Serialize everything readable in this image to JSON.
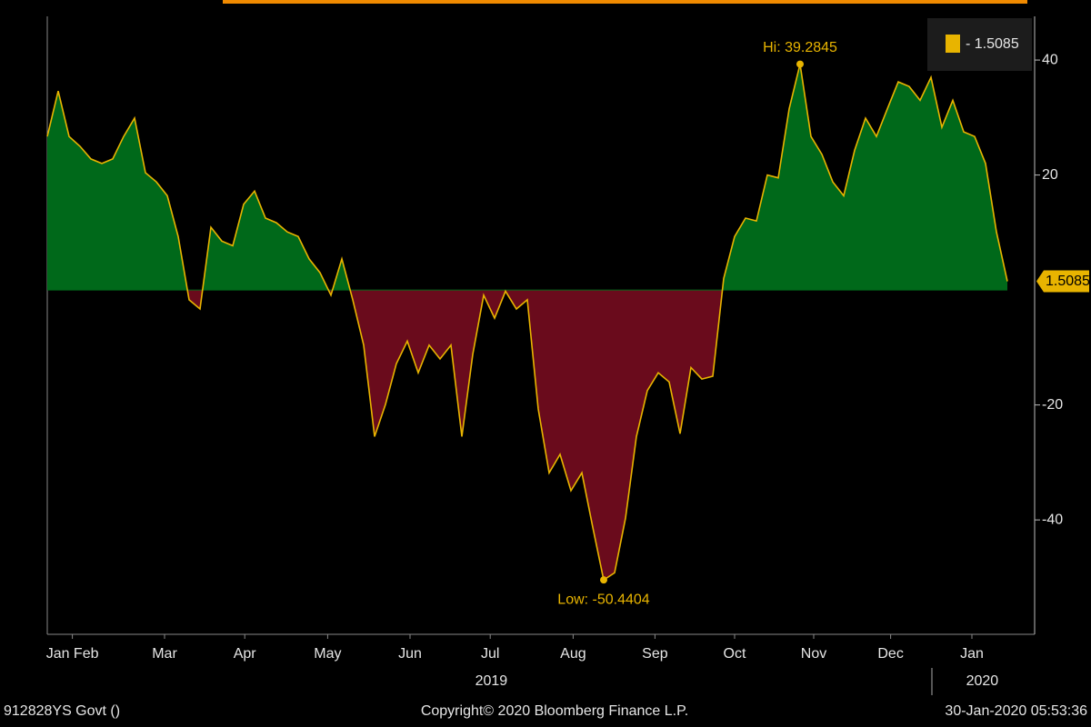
{
  "chart_data": {
    "type": "area",
    "footer": {
      "left": "912828YS Govt ()",
      "center": "Copyright© 2020 Bloomberg Finance L.P.",
      "right": "30-Jan-2020 05:53:36"
    },
    "annotations": {
      "high": "Hi: 39.2845",
      "low": "Low: -50.4404",
      "last": "1.5085"
    },
    "series": [
      {
        "name": "- 1.5085",
        "color": "#e8b400",
        "positive_color": "#00691a",
        "negative_color": "#6a0b1c",
        "values": [
          26.7,
          34.6,
          26.7,
          25,
          22.8,
          22,
          22.8,
          26.7,
          29.9,
          20.4,
          18.8,
          16.4,
          9.3,
          -1.7,
          -3.3,
          10.9,
          8.5,
          7.7,
          14.9,
          17.2,
          12.5,
          11.7,
          10.1,
          9.3,
          5.4,
          3.0,
          -0.9,
          5.4,
          -1.7,
          -9.6,
          -25.5,
          -19.9,
          -12.8,
          -8.9,
          -14.4,
          -9.6,
          -12,
          -9.6,
          -25.5,
          -11.2,
          -0.9,
          -4.9,
          -0.2,
          -3.3,
          -1.7,
          -20.7,
          -31.8,
          -28.6,
          -34.9,
          -31.8,
          -41.3,
          -50.4404,
          -49.2,
          -39.7,
          -25.5,
          -17.5,
          -14.4,
          -16,
          -25,
          -13.5,
          -15.5,
          -15,
          2,
          9.3,
          12.5,
          12,
          20,
          19.5,
          31.5,
          39.2845,
          26.7,
          23.6,
          18.8,
          16.4,
          24.3,
          29.9,
          26.7,
          31.5,
          36.2,
          35.4,
          33,
          37,
          28.3,
          33,
          27.5,
          26.7,
          22,
          10.1,
          1.5085
        ]
      }
    ],
    "xlim": [
      0,
      90.5
    ],
    "xticks": [
      {
        "value": 2.3,
        "label": "Jan Feb"
      },
      {
        "value": 10.75,
        "label": "Mar"
      },
      {
        "value": 18.1,
        "label": "Apr"
      },
      {
        "value": 25.7,
        "label": "May"
      },
      {
        "value": 33.25,
        "label": "Jun"
      },
      {
        "value": 40.6,
        "label": "Jul"
      },
      {
        "value": 48.2,
        "label": "Aug"
      },
      {
        "value": 55.7,
        "label": "Sep"
      },
      {
        "value": 63,
        "label": "Oct"
      },
      {
        "value": 70.25,
        "label": "Nov"
      },
      {
        "value": 77.3,
        "label": "Dec"
      },
      {
        "value": 84.75,
        "label": "Jan"
      }
    ],
    "year_labels": [
      {
        "value": 40.7,
        "label": "2019"
      },
      {
        "value": 85.7,
        "label": "2020"
      }
    ],
    "ylim": [
      -59.9,
      47.6
    ],
    "yticks": [
      -40,
      -20,
      20,
      40
    ]
  }
}
